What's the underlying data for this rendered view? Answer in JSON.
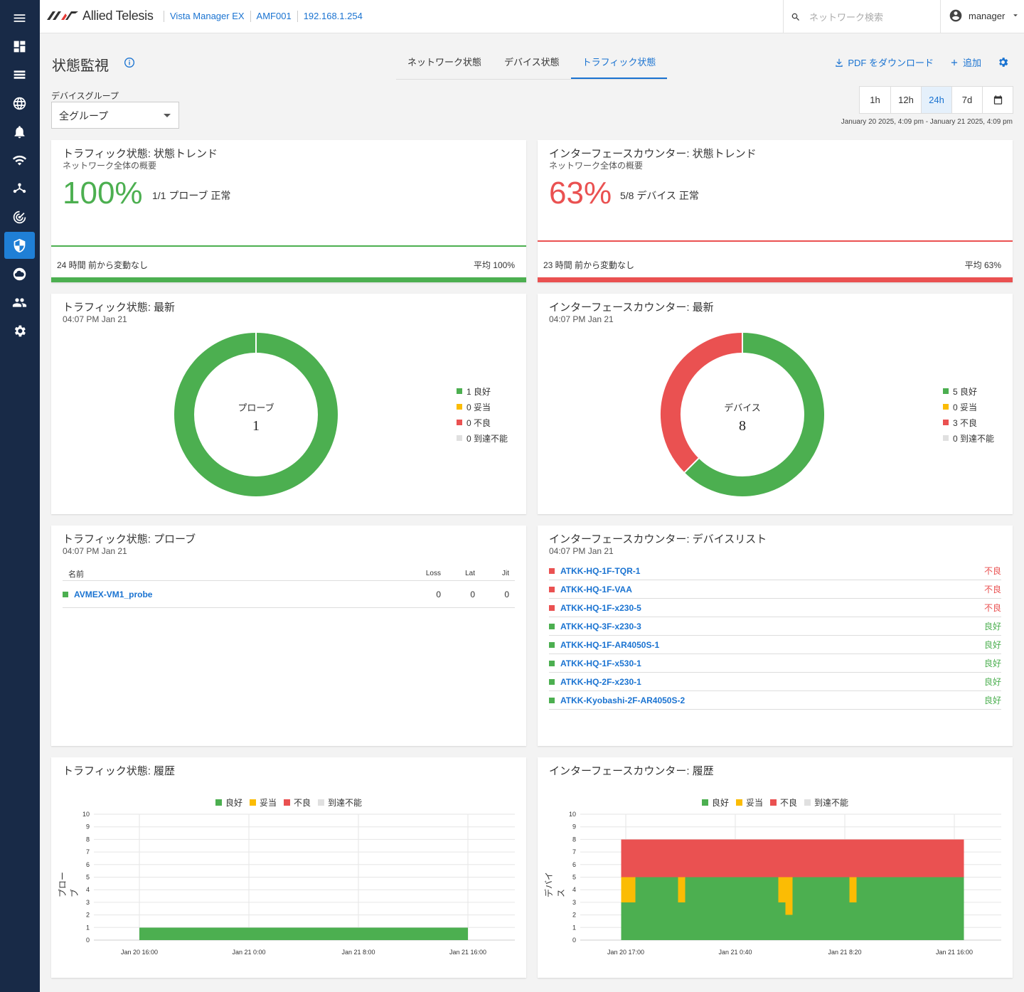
{
  "header": {
    "logo_text": "Allied Telesis",
    "breadcrumbs": [
      "Vista Manager EX",
      "AMF001",
      "192.168.1.254"
    ],
    "search_placeholder": "ネットワーク検索",
    "user": "manager"
  },
  "sidebar": {
    "items": [
      {
        "icon": "menu-icon"
      },
      {
        "icon": "dashboard-icon"
      },
      {
        "icon": "list-icon"
      },
      {
        "icon": "globe-icon"
      },
      {
        "icon": "alarm-icon"
      },
      {
        "icon": "wifi-icon"
      },
      {
        "icon": "topology-icon"
      },
      {
        "icon": "radar-icon"
      },
      {
        "icon": "shield-icon",
        "active": true
      },
      {
        "icon": "cloud-icon"
      },
      {
        "icon": "users-icon"
      },
      {
        "icon": "gear-icon"
      }
    ]
  },
  "page": {
    "title": "状態監視",
    "tabs": [
      {
        "label": "ネットワーク状態"
      },
      {
        "label": "デバイス状態"
      },
      {
        "label": "トラフィック状態",
        "active": true
      }
    ],
    "actions": {
      "pdf": "PDF をダウンロード",
      "add": "追加"
    },
    "device_group": {
      "label": "デバイスグループ",
      "value": "全グループ"
    },
    "time_ranges": [
      "1h",
      "12h",
      "24h",
      "7d"
    ],
    "time_selected": "24h",
    "date_range": "January 20 2025, 4:09 pm - January 21 2025, 4:09 pm"
  },
  "colors": {
    "good": "#4caf50",
    "fair": "#fbbc04",
    "bad": "#ea5151",
    "unreachable": "#e0e0e0",
    "accent": "#1a73d1"
  },
  "traffic_trend": {
    "title": "トラフィック状態: 状態トレンド",
    "subtitle": "ネットワーク全体の概要",
    "percent": "100%",
    "desc": "1/1 プローブ 正常",
    "change": "24 時間 前から変動なし",
    "average": "平均 100%"
  },
  "iface_trend": {
    "title": "インターフェースカウンター: 状態トレンド",
    "subtitle": "ネットワーク全体の概要",
    "percent": "63%",
    "desc": "5/8 デバイス 正常",
    "change": "23 時間 前から変動なし",
    "average": "平均 63%"
  },
  "traffic_latest": {
    "title": "トラフィック状態: 最新",
    "time": "04:07 PM Jan 21",
    "center_label": "プローブ",
    "center_value": "1",
    "legend": [
      "1 良好",
      "0 妥当",
      "0 不良",
      "0 到達不能"
    ],
    "values": {
      "good": 1,
      "fair": 0,
      "bad": 0,
      "unreachable": 0
    }
  },
  "iface_latest": {
    "title": "インターフェースカウンター: 最新",
    "time": "04:07 PM Jan 21",
    "center_label": "デバイス",
    "center_value": "8",
    "legend": [
      "5 良好",
      "0 妥当",
      "3 不良",
      "0 到達不能"
    ],
    "values": {
      "good": 5,
      "fair": 0,
      "bad": 3,
      "unreachable": 0
    }
  },
  "probes": {
    "title": "トラフィック状態: プローブ",
    "time": "04:07 PM Jan 21",
    "columns": [
      "名前",
      "Loss",
      "Lat",
      "Jit"
    ],
    "rows": [
      {
        "name": "AVMEX-VM1_probe",
        "loss": "0",
        "lat": "0",
        "jit": "0",
        "status": "good"
      }
    ]
  },
  "devices": {
    "title": "インターフェースカウンター: デバイスリスト",
    "time": "04:07 PM Jan 21",
    "rows": [
      {
        "name": "ATKK-HQ-1F-TQR-1",
        "status_text": "不良",
        "status": "bad"
      },
      {
        "name": "ATKK-HQ-1F-VAA",
        "status_text": "不良",
        "status": "bad"
      },
      {
        "name": "ATKK-HQ-1F-x230-5",
        "status_text": "不良",
        "status": "bad"
      },
      {
        "name": "ATKK-HQ-3F-x230-3",
        "status_text": "良好",
        "status": "good"
      },
      {
        "name": "ATKK-HQ-1F-AR4050S-1",
        "status_text": "良好",
        "status": "good"
      },
      {
        "name": "ATKK-HQ-1F-x530-1",
        "status_text": "良好",
        "status": "good"
      },
      {
        "name": "ATKK-HQ-2F-x230-1",
        "status_text": "良好",
        "status": "good"
      },
      {
        "name": "ATKK-Kyobashi-2F-AR4050S-2",
        "status_text": "良好",
        "status": "good"
      }
    ]
  },
  "traffic_history": {
    "title": "トラフィック状態: 履歴",
    "legend": [
      "良好",
      "妥当",
      "不良",
      "到達不能"
    ],
    "ylabel": "プローブ"
  },
  "iface_history": {
    "title": "インターフェースカウンター: 履歴",
    "legend": [
      "良好",
      "妥当",
      "不良",
      "到達不能"
    ],
    "ylabel": "デバイス"
  },
  "chart_data": [
    {
      "type": "bar",
      "title": "トラフィック状態: 履歴",
      "ylabel": "プローブ",
      "ylim": [
        0,
        10
      ],
      "yticks": [
        0,
        1,
        2,
        3,
        4,
        5,
        6,
        7,
        8,
        9,
        10
      ],
      "xticks": [
        "Jan 20 16:00",
        "Jan 21 0:00",
        "Jan 21 8:00",
        "Jan 21 16:00"
      ],
      "stacked": true,
      "segments": [
        {
          "start": "Jan 20 16:00",
          "end": "Jan 21 16:00",
          "good": 1,
          "fair": 0,
          "bad": 0,
          "unreachable": 0
        }
      ]
    },
    {
      "type": "bar",
      "title": "インターフェースカウンター: 履歴",
      "ylabel": "デバイス",
      "ylim": [
        0,
        10
      ],
      "yticks": [
        0,
        1,
        2,
        3,
        4,
        5,
        6,
        7,
        8,
        9,
        10
      ],
      "xticks": [
        "Jan 20 17:00",
        "Jan 21 0:40",
        "Jan 21 8:20",
        "Jan 21 16:00"
      ],
      "stacked": true,
      "segments": [
        {
          "start": "Jan 20 16:40",
          "end": "Jan 20 17:40",
          "good": 3,
          "fair": 2,
          "bad": 3
        },
        {
          "start": "Jan 20 17:40",
          "end": "Jan 20 20:40",
          "good": 5,
          "fair": 0,
          "bad": 3
        },
        {
          "start": "Jan 20 20:40",
          "end": "Jan 20 21:10",
          "good": 3,
          "fair": 2,
          "bad": 3
        },
        {
          "start": "Jan 20 21:10",
          "end": "Jan 21 3:40",
          "good": 5,
          "fair": 0,
          "bad": 3
        },
        {
          "start": "Jan 21 3:40",
          "end": "Jan 21 4:10",
          "good": 3,
          "fair": 2,
          "bad": 3
        },
        {
          "start": "Jan 21 4:10",
          "end": "Jan 21 4:40",
          "good": 2,
          "fair": 3,
          "bad": 3
        },
        {
          "start": "Jan 21 4:40",
          "end": "Jan 21 8:40",
          "good": 5,
          "fair": 0,
          "bad": 3
        },
        {
          "start": "Jan 21 8:40",
          "end": "Jan 21 9:10",
          "good": 3,
          "fair": 2,
          "bad": 3
        },
        {
          "start": "Jan 21 9:10",
          "end": "Jan 21 16:40",
          "good": 5,
          "fair": 0,
          "bad": 3
        }
      ]
    }
  ]
}
